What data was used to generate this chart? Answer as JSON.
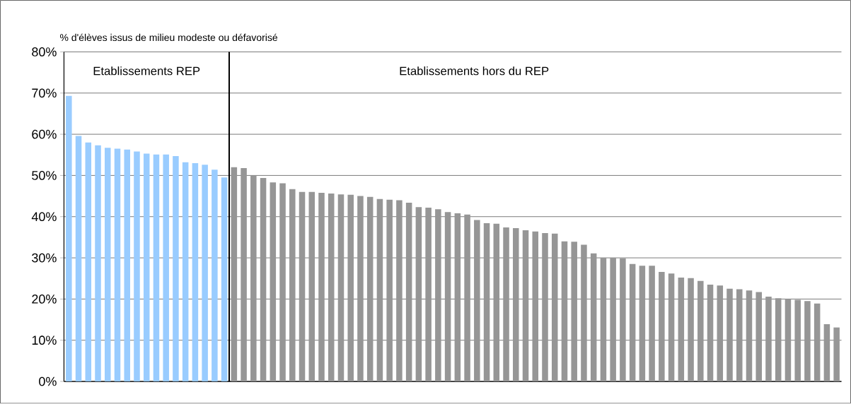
{
  "chart_data": {
    "type": "bar",
    "ylabel": "% d'élèves issus de milieu modeste ou défavorisé",
    "annotations": [
      "Etablissements REP",
      "Etablissements hors du REP"
    ],
    "categories": [
      null,
      null,
      null,
      null,
      null,
      null,
      null,
      null,
      null,
      null,
      null,
      null,
      null,
      null,
      null,
      null,
      null,
      null,
      null,
      null,
      null,
      null,
      null,
      null,
      null,
      null,
      null,
      null,
      null,
      null,
      null,
      null,
      null,
      null,
      null,
      null,
      null,
      null,
      null,
      null,
      null,
      null,
      null,
      null,
      null,
      null,
      null,
      null,
      null,
      null,
      null,
      null,
      null,
      null,
      null,
      null,
      null,
      null,
      null,
      null,
      null,
      null,
      null,
      null,
      null,
      null,
      null,
      null,
      null,
      null,
      null,
      null,
      null,
      null,
      null,
      null,
      null,
      null,
      null,
      null
    ],
    "values": [
      69.3,
      59.6,
      58.0,
      57.3,
      56.7,
      56.5,
      56.3,
      55.8,
      55.3,
      55.1,
      55.1,
      54.7,
      53.2,
      53.0,
      52.6,
      51.4,
      49.5,
      52.0,
      51.8,
      50.0,
      49.4,
      48.3,
      48.1,
      46.7,
      46.0,
      46.0,
      45.8,
      45.6,
      45.4,
      45.3,
      45.0,
      44.8,
      44.3,
      44.1,
      44.0,
      43.4,
      42.3,
      42.2,
      41.8,
      41.1,
      40.8,
      40.5,
      39.2,
      38.4,
      38.3,
      37.4,
      37.2,
      36.7,
      36.4,
      36.0,
      35.9,
      34.0,
      33.9,
      33.2,
      31.1,
      30.0,
      30.0,
      29.9,
      28.5,
      28.1,
      28.1,
      26.6,
      26.2,
      25.2,
      25.1,
      24.4,
      23.5,
      23.3,
      22.5,
      22.4,
      22.1,
      21.7,
      20.6,
      20.2,
      20.0,
      19.8,
      19.5,
      18.9,
      13.9,
      13.1
    ],
    "colors": [
      "#99ccff",
      "#99ccff",
      "#99ccff",
      "#99ccff",
      "#99ccff",
      "#99ccff",
      "#99ccff",
      "#99ccff",
      "#99ccff",
      "#99ccff",
      "#99ccff",
      "#99ccff",
      "#99ccff",
      "#99ccff",
      "#99ccff",
      "#99ccff",
      "#99ccff",
      "#969696",
      "#969696",
      "#969696",
      "#969696",
      "#969696",
      "#969696",
      "#969696",
      "#969696",
      "#969696",
      "#969696",
      "#969696",
      "#969696",
      "#969696",
      "#969696",
      "#969696",
      "#969696",
      "#969696",
      "#969696",
      "#969696",
      "#969696",
      "#969696",
      "#969696",
      "#969696",
      "#969696",
      "#969696",
      "#969696",
      "#969696",
      "#969696",
      "#969696",
      "#969696",
      "#969696",
      "#969696",
      "#969696",
      "#969696",
      "#969696",
      "#969696",
      "#969696",
      "#969696",
      "#969696",
      "#969696",
      "#969696",
      "#969696",
      "#969696",
      "#969696",
      "#969696",
      "#969696",
      "#969696",
      "#969696",
      "#969696",
      "#969696",
      "#969696",
      "#969696",
      "#969696",
      "#969696",
      "#969696",
      "#969696",
      "#969696",
      "#969696",
      "#969696",
      "#969696",
      "#969696",
      "#969696",
      "#969696"
    ],
    "ylim": [
      0,
      80
    ],
    "yticks": [
      {
        "value": 0,
        "label": "0%"
      },
      {
        "value": 10,
        "label": "10%"
      },
      {
        "value": 20,
        "label": "20%"
      },
      {
        "value": 30,
        "label": "30%"
      },
      {
        "value": 40,
        "label": "40%"
      },
      {
        "value": 50,
        "label": "50%"
      },
      {
        "value": 60,
        "label": "60%"
      },
      {
        "value": 70,
        "label": "70%"
      },
      {
        "value": 80,
        "label": "80%"
      }
    ],
    "grid": "y"
  }
}
